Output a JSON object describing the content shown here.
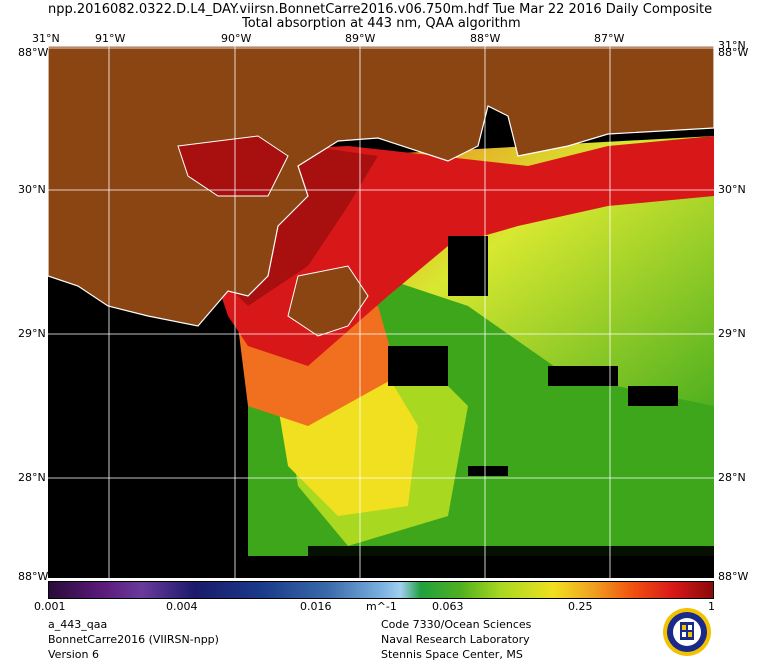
{
  "header": {
    "line1": "npp.2016082.0322.D.L4_DAY.viirsn.BonnetCarre2016.v06.750m.hdf     Tue Mar 22 2016 Daily Composite",
    "line2": "Total absorption at 443 nm, QAA algorithm"
  },
  "map": {
    "lon_labels": [
      "31°N",
      "91°W",
      "90°W",
      "89°W",
      "88°W",
      "87°W",
      "31°N"
    ],
    "lat_labels_left": [
      "88°W",
      "30°N",
      "29°N",
      "28°N",
      "88°W"
    ],
    "lat_labels_right": [
      "88°W",
      "30°N",
      "29°N",
      "28°N",
      "88°W"
    ],
    "colors": {
      "land": "#8B4513",
      "nodata": "#000000",
      "coast": "#ffffff",
      "grid": "#ffffff"
    }
  },
  "colorbar": {
    "ticks": [
      "0.001",
      "0.004",
      "0.016",
      "m^-1",
      "0.063",
      "0.25",
      "1"
    ],
    "scale": "log",
    "range": [
      0.001,
      1
    ]
  },
  "footer": {
    "left": [
      "a_443_qaa",
      "BonnetCarre2016 (VIIRSN-npp)",
      "Version 6"
    ],
    "right": [
      "Code 7330/Ocean Sciences",
      "Naval Research Laboratory",
      "Stennis Space Center, MS"
    ],
    "logo": "nrl-seal-icon"
  }
}
